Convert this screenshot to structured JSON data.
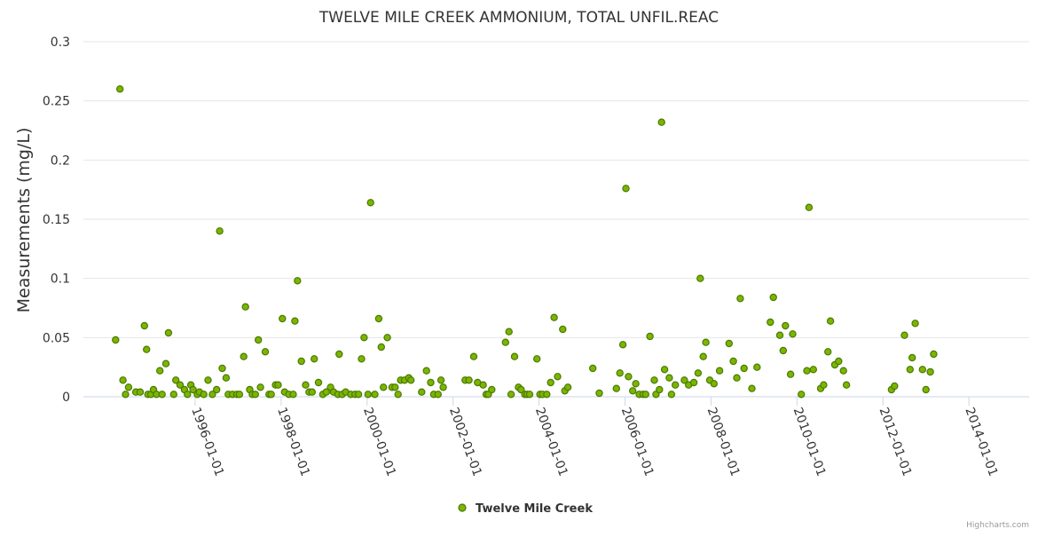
{
  "colors": {
    "marker_fill": "#7cb500",
    "marker_stroke": "#4a7a00",
    "grid": "#e6e6e6"
  },
  "chart_data": {
    "type": "scatter",
    "title": "TWELVE MILE CREEK AMMONIUM, TOTAL UNFIL.REAC",
    "xlabel": "",
    "ylabel": "Measurements (mg/L)",
    "ylim": [
      0,
      0.3
    ],
    "yticks": [
      "0",
      "0.05",
      "0.1",
      "0.15",
      "0.2",
      "0.25",
      "0.3"
    ],
    "xlim": [
      1993.4,
      2015.4
    ],
    "xticks": [
      {
        "value": 1996.0,
        "label": "1996-01-01"
      },
      {
        "value": 1998.0,
        "label": "1998-01-01"
      },
      {
        "value": 2000.0,
        "label": "2000-01-01"
      },
      {
        "value": 2002.0,
        "label": "2002-01-01"
      },
      {
        "value": 2004.0,
        "label": "2004-01-01"
      },
      {
        "value": 2006.0,
        "label": "2006-01-01"
      },
      {
        "value": 2008.0,
        "label": "2008-01-01"
      },
      {
        "value": 2010.0,
        "label": "2010-01-01"
      },
      {
        "value": 2012.0,
        "label": "2012-01-01"
      },
      {
        "value": 2014.0,
        "label": "2014-01-01"
      }
    ],
    "legend": "bottom-center",
    "series": [
      {
        "name": "Twelve Mile Creek",
        "points": [
          [
            1994.15,
            0.048
          ],
          [
            1994.25,
            0.26
          ],
          [
            1994.32,
            0.014
          ],
          [
            1994.38,
            0.002
          ],
          [
            1994.45,
            0.008
          ],
          [
            1994.62,
            0.004
          ],
          [
            1994.72,
            0.004
          ],
          [
            1994.82,
            0.06
          ],
          [
            1994.87,
            0.04
          ],
          [
            1994.9,
            0.002
          ],
          [
            1994.97,
            0.002
          ],
          [
            1995.03,
            0.006
          ],
          [
            1995.1,
            0.002
          ],
          [
            1995.18,
            0.022
          ],
          [
            1995.23,
            0.002
          ],
          [
            1995.32,
            0.028
          ],
          [
            1995.38,
            0.054
          ],
          [
            1995.5,
            0.002
          ],
          [
            1995.55,
            0.014
          ],
          [
            1995.65,
            0.01
          ],
          [
            1995.75,
            0.006
          ],
          [
            1995.82,
            0.002
          ],
          [
            1995.9,
            0.01
          ],
          [
            1995.95,
            0.006
          ],
          [
            1996.05,
            0.002
          ],
          [
            1996.1,
            0.004
          ],
          [
            1996.2,
            0.002
          ],
          [
            1996.3,
            0.014
          ],
          [
            1996.4,
            0.002
          ],
          [
            1996.5,
            0.006
          ],
          [
            1996.57,
            0.14
          ],
          [
            1996.63,
            0.024
          ],
          [
            1996.72,
            0.016
          ],
          [
            1996.77,
            0.002
          ],
          [
            1996.87,
            0.002
          ],
          [
            1996.97,
            0.002
          ],
          [
            1997.03,
            0.002
          ],
          [
            1997.13,
            0.034
          ],
          [
            1997.17,
            0.076
          ],
          [
            1997.27,
            0.006
          ],
          [
            1997.33,
            0.002
          ],
          [
            1997.4,
            0.002
          ],
          [
            1997.47,
            0.048
          ],
          [
            1997.52,
            0.008
          ],
          [
            1997.63,
            0.038
          ],
          [
            1997.72,
            0.002
          ],
          [
            1997.77,
            0.002
          ],
          [
            1997.87,
            0.01
          ],
          [
            1997.93,
            0.01
          ],
          [
            1998.03,
            0.066
          ],
          [
            1998.08,
            0.004
          ],
          [
            1998.18,
            0.002
          ],
          [
            1998.28,
            0.002
          ],
          [
            1998.32,
            0.064
          ],
          [
            1998.38,
            0.098
          ],
          [
            1998.47,
            0.03
          ],
          [
            1998.57,
            0.01
          ],
          [
            1998.65,
            0.004
          ],
          [
            1998.72,
            0.004
          ],
          [
            1998.77,
            0.032
          ],
          [
            1998.87,
            0.012
          ],
          [
            1998.97,
            0.002
          ],
          [
            1999.05,
            0.004
          ],
          [
            1999.15,
            0.008
          ],
          [
            1999.22,
            0.004
          ],
          [
            1999.32,
            0.002
          ],
          [
            1999.35,
            0.036
          ],
          [
            1999.42,
            0.002
          ],
          [
            1999.5,
            0.004
          ],
          [
            1999.62,
            0.002
          ],
          [
            1999.72,
            0.002
          ],
          [
            1999.8,
            0.002
          ],
          [
            1999.87,
            0.032
          ],
          [
            1999.93,
            0.05
          ],
          [
            2000.02,
            0.002
          ],
          [
            2000.08,
            0.164
          ],
          [
            2000.18,
            0.002
          ],
          [
            2000.27,
            0.066
          ],
          [
            2000.33,
            0.042
          ],
          [
            2000.38,
            0.008
          ],
          [
            2000.47,
            0.05
          ],
          [
            2000.58,
            0.008
          ],
          [
            2000.65,
            0.008
          ],
          [
            2000.72,
            0.002
          ],
          [
            2000.78,
            0.014
          ],
          [
            2000.87,
            0.014
          ],
          [
            2000.97,
            0.016
          ],
          [
            2001.02,
            0.014
          ],
          [
            2001.27,
            0.004
          ],
          [
            2001.38,
            0.022
          ],
          [
            2001.48,
            0.012
          ],
          [
            2001.55,
            0.002
          ],
          [
            2001.65,
            0.002
          ],
          [
            2001.72,
            0.014
          ],
          [
            2001.77,
            0.008
          ],
          [
            2002.28,
            0.014
          ],
          [
            2002.37,
            0.014
          ],
          [
            2002.48,
            0.034
          ],
          [
            2002.57,
            0.012
          ],
          [
            2002.7,
            0.01
          ],
          [
            2002.77,
            0.002
          ],
          [
            2002.82,
            0.002
          ],
          [
            2002.9,
            0.006
          ],
          [
            2003.22,
            0.046
          ],
          [
            2003.3,
            0.055
          ],
          [
            2003.35,
            0.002
          ],
          [
            2003.43,
            0.034
          ],
          [
            2003.52,
            0.008
          ],
          [
            2003.58,
            0.006
          ],
          [
            2003.67,
            0.002
          ],
          [
            2003.72,
            0.002
          ],
          [
            2003.78,
            0.002
          ],
          [
            2003.95,
            0.032
          ],
          [
            2004.02,
            0.002
          ],
          [
            2004.08,
            0.002
          ],
          [
            2004.18,
            0.002
          ],
          [
            2004.27,
            0.012
          ],
          [
            2004.35,
            0.067
          ],
          [
            2004.43,
            0.017
          ],
          [
            2004.55,
            0.057
          ],
          [
            2004.6,
            0.005
          ],
          [
            2004.67,
            0.008
          ],
          [
            2005.25,
            0.024
          ],
          [
            2005.4,
            0.003
          ],
          [
            2005.8,
            0.007
          ],
          [
            2005.88,
            0.02
          ],
          [
            2005.95,
            0.044
          ],
          [
            2006.02,
            0.176
          ],
          [
            2006.08,
            0.017
          ],
          [
            2006.18,
            0.005
          ],
          [
            2006.25,
            0.011
          ],
          [
            2006.33,
            0.002
          ],
          [
            2006.42,
            0.002
          ],
          [
            2006.48,
            0.002
          ],
          [
            2006.58,
            0.051
          ],
          [
            2006.68,
            0.014
          ],
          [
            2006.72,
            0.002
          ],
          [
            2006.8,
            0.006
          ],
          [
            2006.85,
            0.232
          ],
          [
            2006.92,
            0.023
          ],
          [
            2007.03,
            0.016
          ],
          [
            2007.08,
            0.002
          ],
          [
            2007.17,
            0.01
          ],
          [
            2007.38,
            0.014
          ],
          [
            2007.48,
            0.01
          ],
          [
            2007.6,
            0.012
          ],
          [
            2007.7,
            0.02
          ],
          [
            2007.75,
            0.1
          ],
          [
            2007.82,
            0.034
          ],
          [
            2007.88,
            0.046
          ],
          [
            2007.97,
            0.014
          ],
          [
            2008.07,
            0.011
          ],
          [
            2008.2,
            0.022
          ],
          [
            2008.42,
            0.045
          ],
          [
            2008.52,
            0.03
          ],
          [
            2008.6,
            0.016
          ],
          [
            2008.68,
            0.083
          ],
          [
            2008.77,
            0.024
          ],
          [
            2008.95,
            0.007
          ],
          [
            2009.07,
            0.025
          ],
          [
            2009.38,
            0.063
          ],
          [
            2009.45,
            0.084
          ],
          [
            2009.6,
            0.052
          ],
          [
            2009.68,
            0.039
          ],
          [
            2009.73,
            0.06
          ],
          [
            2009.85,
            0.019
          ],
          [
            2009.9,
            0.053
          ],
          [
            2010.1,
            0.002
          ],
          [
            2010.23,
            0.022
          ],
          [
            2010.28,
            0.16
          ],
          [
            2010.38,
            0.023
          ],
          [
            2010.55,
            0.007
          ],
          [
            2010.62,
            0.01
          ],
          [
            2010.72,
            0.038
          ],
          [
            2010.78,
            0.064
          ],
          [
            2010.88,
            0.027
          ],
          [
            2010.97,
            0.03
          ],
          [
            2011.08,
            0.022
          ],
          [
            2011.15,
            0.01
          ],
          [
            2012.2,
            0.006
          ],
          [
            2012.27,
            0.009
          ],
          [
            2012.5,
            0.052
          ],
          [
            2012.63,
            0.023
          ],
          [
            2012.68,
            0.033
          ],
          [
            2012.75,
            0.062
          ],
          [
            2012.92,
            0.023
          ],
          [
            2013.0,
            0.006
          ],
          [
            2013.1,
            0.021
          ],
          [
            2013.18,
            0.036
          ]
        ]
      }
    ]
  },
  "credits": "Highcharts.com"
}
